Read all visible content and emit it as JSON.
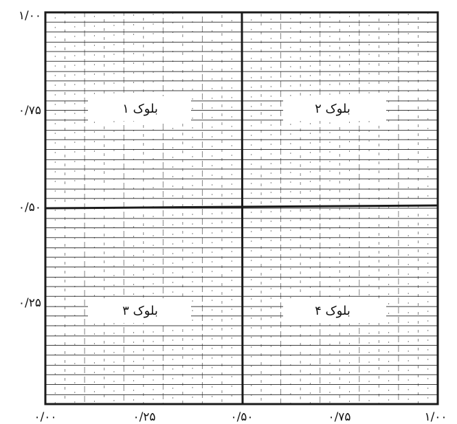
{
  "diagram": {
    "x_ticks": [
      "۰/۰۰",
      "۰/۲۵",
      "۰/۵۰",
      "۰/۷۵",
      "۱/۰۰"
    ],
    "y_ticks": [
      "۱/۰۰",
      "۰/۷۵",
      "۰/۵۰",
      "۰/۲۵",
      "۰/۰۰"
    ],
    "blocks": [
      {
        "label": "بلوک ۱"
      },
      {
        "label": "بلوک ۲"
      },
      {
        "label": "بلوک ۳"
      },
      {
        "label": "بلوک ۴"
      }
    ],
    "line_color": "#1a1a1a",
    "background": "#ffffff"
  }
}
